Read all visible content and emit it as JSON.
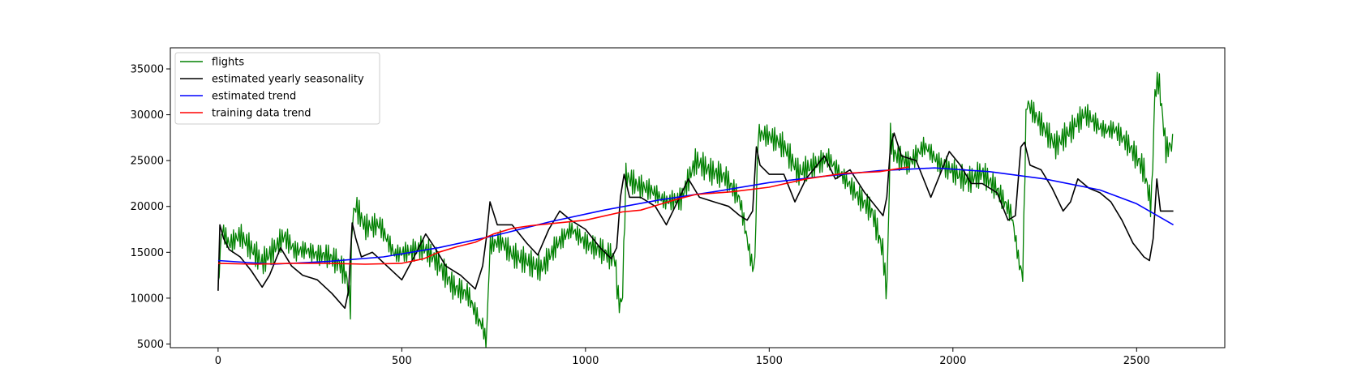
{
  "chart_data": {
    "type": "line",
    "title": "",
    "xlabel": "",
    "ylabel": "",
    "xlim": [
      -130,
      2740
    ],
    "ylim": [
      4600,
      37300
    ],
    "xticks": [
      0,
      500,
      1000,
      1500,
      2000,
      2500
    ],
    "xtick_labels": [
      "0",
      "500",
      "1000",
      "1500",
      "2000",
      "2500"
    ],
    "yticks": [
      5000,
      10000,
      15000,
      20000,
      25000,
      30000,
      35000
    ],
    "ytick_labels": [
      "5000",
      "10000",
      "15000",
      "20000",
      "25000",
      "30000",
      "35000"
    ],
    "grid": false,
    "legend_position": "upper-left",
    "series": [
      {
        "name": "flights",
        "color": "#008000",
        "x": [
          0,
          10,
          30,
          60,
          90,
          120,
          150,
          180,
          210,
          240,
          270,
          300,
          330,
          350,
          360,
          365,
          375,
          400,
          440,
          480,
          520,
          560,
          600,
          640,
          680,
          710,
          720,
          730,
          740,
          770,
          800,
          840,
          880,
          920,
          960,
          1000,
          1040,
          1080,
          1090,
          1100,
          1110,
          1140,
          1180,
          1220,
          1260,
          1300,
          1340,
          1380,
          1420,
          1450,
          1460,
          1470,
          1500,
          1540,
          1580,
          1620,
          1660,
          1700,
          1740,
          1780,
          1810,
          1820,
          1830,
          1840,
          1880,
          1920,
          1960,
          2000,
          2040,
          2080,
          2120,
          2160,
          2180,
          2190,
          2200,
          2240,
          2280,
          2320,
          2360,
          2400,
          2440,
          2480,
          2520,
          2540,
          2550,
          2560,
          2580,
          2600
        ],
        "values": [
          11000,
          17500,
          15500,
          16000,
          14000,
          12000,
          13000,
          14500,
          13000,
          13500,
          12500,
          12000,
          11000,
          9500,
          6500,
          16000,
          17500,
          15500,
          16500,
          14000,
          14500,
          15500,
          14500,
          12500,
          12000,
          9000,
          8500,
          6500,
          17500,
          18500,
          17500,
          17000,
          16000,
          18000,
          19000,
          17500,
          16500,
          15000,
          10000,
          9800,
          23500,
          22000,
          21000,
          19500,
          19000,
          22500,
          21000,
          20500,
          18500,
          12500,
          11000,
          26000,
          25500,
          24500,
          22000,
          23500,
          25000,
          23500,
          22000,
          21000,
          17000,
          12000,
          30000,
          28000,
          27000,
          28500,
          27000,
          26500,
          25500,
          26000,
          23500,
          20000,
          14500,
          13000,
          32000,
          29000,
          26000,
          27000,
          28500,
          27000,
          26500,
          24000,
          21000,
          17000,
          29500,
          31000,
          23500,
          24500
        ]
      },
      {
        "name": "estimated yearly seasonality",
        "color": "#000000",
        "x": [
          0,
          5,
          15,
          30,
          60,
          90,
          120,
          140,
          170,
          200,
          230,
          270,
          310,
          345,
          355,
          365,
          375,
          390,
          420,
          460,
          500,
          540,
          565,
          590,
          620,
          660,
          700,
          720,
          730,
          740,
          760,
          800,
          840,
          870,
          900,
          930,
          960,
          1000,
          1040,
          1070,
          1085,
          1095,
          1105,
          1120,
          1150,
          1190,
          1220,
          1250,
          1280,
          1310,
          1350,
          1390,
          1420,
          1440,
          1455,
          1465,
          1475,
          1500,
          1540,
          1570,
          1600,
          1620,
          1650,
          1680,
          1720,
          1760,
          1790,
          1810,
          1820,
          1830,
          1840,
          1860,
          1900,
          1940,
          1960,
          1990,
          2020,
          2050,
          2080,
          2120,
          2150,
          2170,
          2185,
          2195,
          2210,
          2240,
          2270,
          2300,
          2320,
          2340,
          2370,
          2400,
          2430,
          2460,
          2490,
          2520,
          2535,
          2545,
          2555,
          2565,
          2580,
          2600
        ],
        "values": [
          10800,
          18000,
          16500,
          15300,
          14500,
          13000,
          11200,
          12500,
          15500,
          13500,
          12500,
          12000,
          10500,
          8900,
          10800,
          18200,
          16500,
          14500,
          15000,
          13500,
          12000,
          15000,
          17000,
          15500,
          13500,
          12500,
          11000,
          13500,
          16500,
          20500,
          18000,
          18000,
          16000,
          14700,
          17500,
          19500,
          18500,
          17500,
          15500,
          14300,
          15500,
          21000,
          23500,
          21000,
          21000,
          20000,
          18000,
          20500,
          23000,
          21000,
          20500,
          20000,
          19000,
          18500,
          19500,
          26500,
          24500,
          23500,
          23500,
          20500,
          23000,
          24000,
          25500,
          23000,
          24000,
          21500,
          20000,
          19000,
          21000,
          26500,
          28000,
          25500,
          25000,
          21000,
          23000,
          26000,
          24500,
          22500,
          22500,
          21500,
          18500,
          19000,
          26500,
          27000,
          24500,
          24000,
          22000,
          19500,
          20500,
          23000,
          22000,
          21500,
          20500,
          18500,
          16000,
          14500,
          14100,
          16500,
          23000,
          19500,
          19500,
          19500
        ]
      },
      {
        "name": "estimated trend",
        "color": "#0000ff",
        "x": [
          0,
          150,
          300,
          450,
          600,
          750,
          900,
          1050,
          1200,
          1350,
          1500,
          1650,
          1800,
          1950,
          2100,
          2250,
          2400,
          2500,
          2600
        ],
        "values": [
          14100,
          13700,
          14000,
          14500,
          15500,
          16800,
          18300,
          19600,
          20700,
          21600,
          22600,
          23300,
          23900,
          24200,
          23800,
          23000,
          21800,
          20300,
          18000
        ]
      },
      {
        "name": "training data trend",
        "color": "#ff0000",
        "x": [
          0,
          100,
          200,
          300,
          400,
          500,
          560,
          600,
          650,
          700,
          750,
          800,
          850,
          900,
          1000,
          1100,
          1150,
          1200,
          1250,
          1300,
          1400,
          1500,
          1600,
          1700,
          1800,
          1880
        ],
        "values": [
          13800,
          13700,
          13800,
          13800,
          13700,
          13800,
          14300,
          15000,
          15600,
          16100,
          17000,
          17600,
          17900,
          18100,
          18500,
          19400,
          19600,
          20200,
          20800,
          21300,
          21600,
          22100,
          23000,
          23600,
          23800,
          24300
        ]
      }
    ]
  }
}
